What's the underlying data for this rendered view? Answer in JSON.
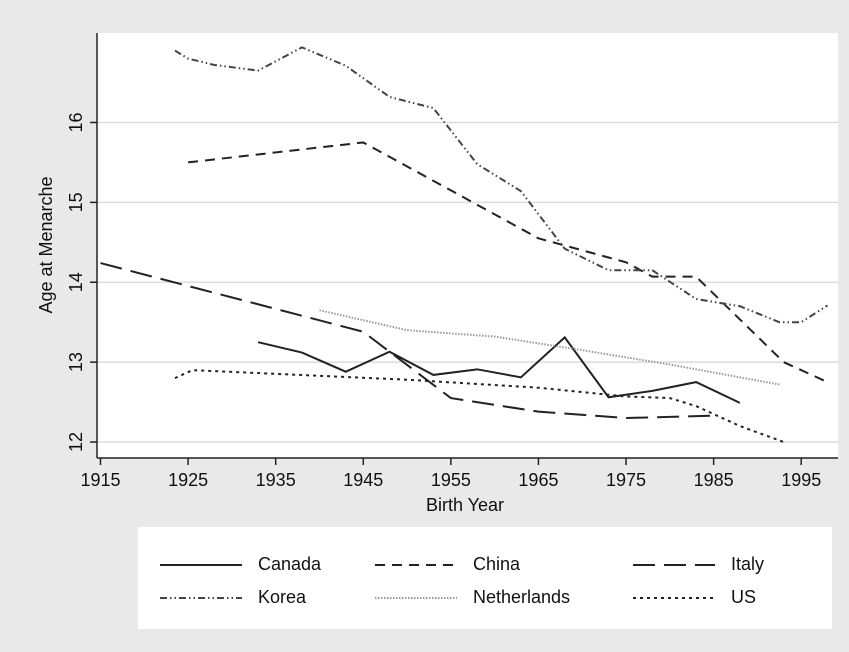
{
  "chart_data": {
    "type": "line",
    "xlabel": "Birth Year",
    "ylabel": "Age at Menarche",
    "xlim": [
      1914.6,
      1999.2
    ],
    "ylim": [
      11.8,
      17.12
    ],
    "xticks": [
      1915,
      1925,
      1935,
      1945,
      1955,
      1965,
      1975,
      1985,
      1995
    ],
    "yticks": [
      12,
      13,
      14,
      15,
      16
    ],
    "grid": true,
    "legend": "bottom",
    "series": [
      {
        "name": "Canada",
        "color": "#222222",
        "dash": "none",
        "x": [
          1933,
          1938,
          1943,
          1948,
          1953,
          1958,
          1963,
          1968,
          1973,
          1978,
          1983,
          1988
        ],
        "values": [
          13.25,
          13.12,
          12.88,
          13.13,
          12.84,
          12.91,
          12.81,
          13.31,
          12.56,
          12.64,
          12.75,
          12.49
        ]
      },
      {
        "name": "China",
        "color": "#222222",
        "dash": "10,7",
        "x": [
          1925,
          1945,
          1965,
          1975,
          1978,
          1983,
          1993,
          1998
        ],
        "values": [
          15.5,
          15.75,
          14.55,
          14.25,
          14.07,
          14.07,
          13.0,
          12.75
        ]
      },
      {
        "name": "Italy",
        "color": "#222222",
        "dash": "22,9",
        "x": [
          1915,
          1945,
          1955,
          1965,
          1975,
          1985
        ],
        "values": [
          14.24,
          13.38,
          12.55,
          12.38,
          12.3,
          12.33
        ]
      },
      {
        "name": "Korea",
        "color": "#444444",
        "dash": "7,3,1.5,3,1.5,3",
        "x": [
          1923.5,
          1925,
          1928,
          1933,
          1938,
          1943,
          1948,
          1953,
          1958,
          1963,
          1968,
          1973,
          1978,
          1983,
          1988,
          1992.5,
          1995,
          1998
        ],
        "values": [
          16.9,
          16.8,
          16.72,
          16.65,
          16.94,
          16.71,
          16.32,
          16.18,
          15.48,
          15.14,
          14.42,
          14.15,
          14.15,
          13.79,
          13.7,
          13.5,
          13.5,
          13.71
        ]
      },
      {
        "name": "Netherlands",
        "color": "#9a9a9a",
        "dash": "1.5,1.5",
        "x": [
          1940,
          1950,
          1960,
          1970,
          1980,
          1992.5
        ],
        "values": [
          13.65,
          13.4,
          13.32,
          13.15,
          12.97,
          12.72
        ]
      },
      {
        "name": "US",
        "color": "#222222",
        "dash": "3,4",
        "x": [
          1923.5,
          1925.5,
          1950,
          1965,
          1975,
          1980,
          1983,
          1988,
          1993
        ],
        "values": [
          12.8,
          12.9,
          12.78,
          12.68,
          12.57,
          12.55,
          12.45,
          12.2,
          12.0
        ]
      }
    ]
  }
}
